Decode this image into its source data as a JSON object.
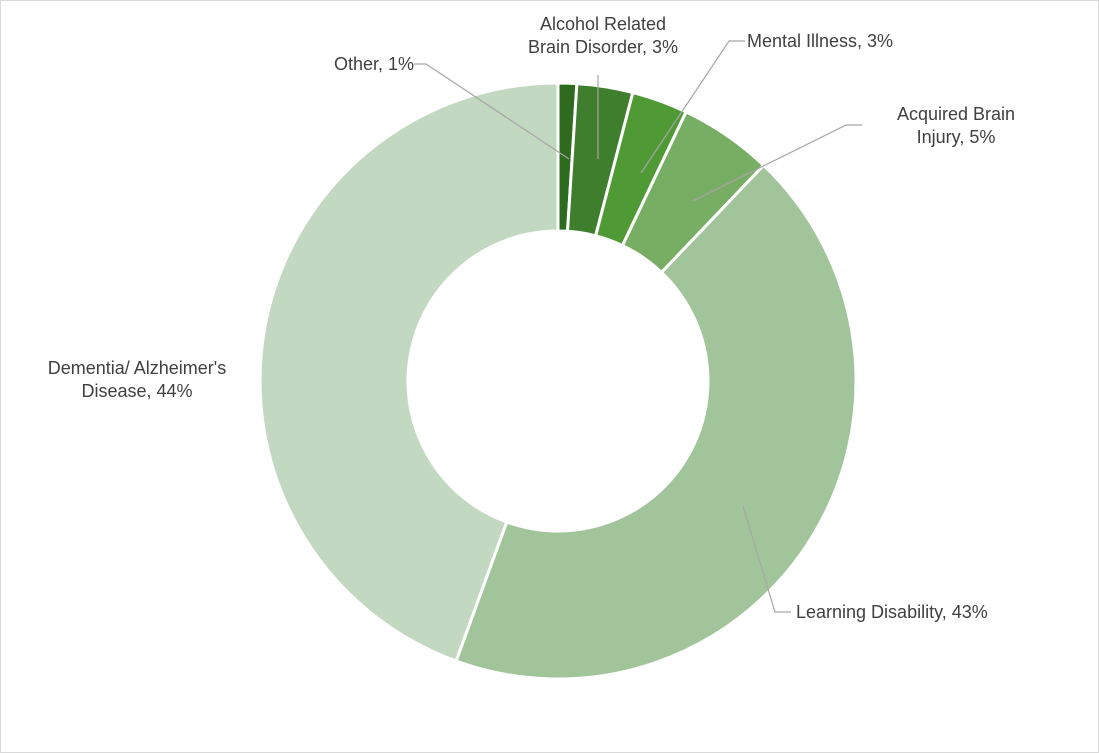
{
  "chart_data": {
    "type": "pie",
    "subtype": "doughnut",
    "title": "",
    "legend": "none",
    "slices": [
      {
        "label": "Other",
        "value": 1,
        "data_label": "Other, 1%",
        "color": "#2e6b1f"
      },
      {
        "label": "Alcohol Related Brain Disorder",
        "value": 3,
        "data_label": "Alcohol Related\nBrain Disorder, 3%",
        "color": "#3e7e2c"
      },
      {
        "label": "Mental Illness",
        "value": 3,
        "data_label": "Mental Illness, 3%",
        "color": "#4f9a35"
      },
      {
        "label": "Acquired Brain Injury",
        "value": 5,
        "data_label": "Acquired Brain\nInjury, 5%",
        "color": "#78ad64"
      },
      {
        "label": "Learning Disability",
        "value": 43,
        "data_label": "Learning Disability, 43%",
        "color": "#a2c49a"
      },
      {
        "label": "Dementia/ Alzheimer's Disease",
        "value": 44,
        "data_label": "Dementia/ Alzheimer's\nDisease, 44%",
        "color": "#c3d8c0"
      }
    ]
  }
}
